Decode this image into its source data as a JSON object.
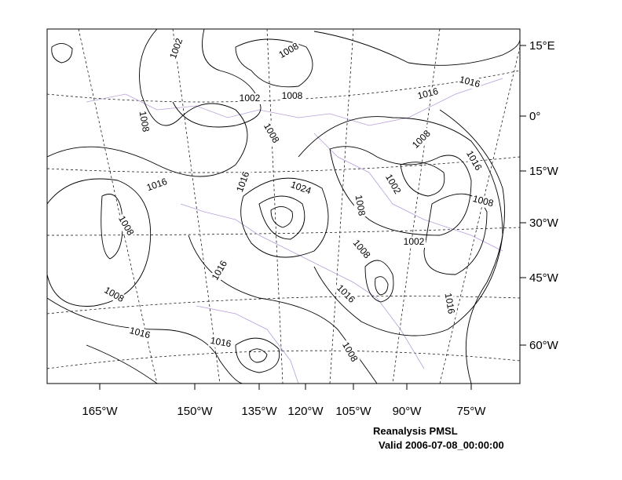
{
  "map": {
    "lon_labels": [
      "165°W",
      "150°W",
      "135°W",
      "120°W",
      "105°W",
      "90°W",
      "75°W"
    ],
    "lat_labels": [
      "15°E",
      "0°",
      "15°W",
      "30°W",
      "45°W",
      "60°W"
    ],
    "contour_labels": [
      "1002",
      "1008",
      "1002",
      "1008",
      "1016",
      "1016",
      "1008",
      "1008",
      "1008",
      "1016",
      "1016",
      "1016",
      "1024",
      "1002",
      "1008",
      "1008",
      "1008",
      "1002",
      "1008",
      "1016",
      "1016",
      "1008",
      "1016",
      "1016",
      "1016",
      "1008"
    ],
    "caption": {
      "title": "Reanalysis PMSL",
      "valid": "Valid 2006-07-08_00:00:00"
    }
  }
}
